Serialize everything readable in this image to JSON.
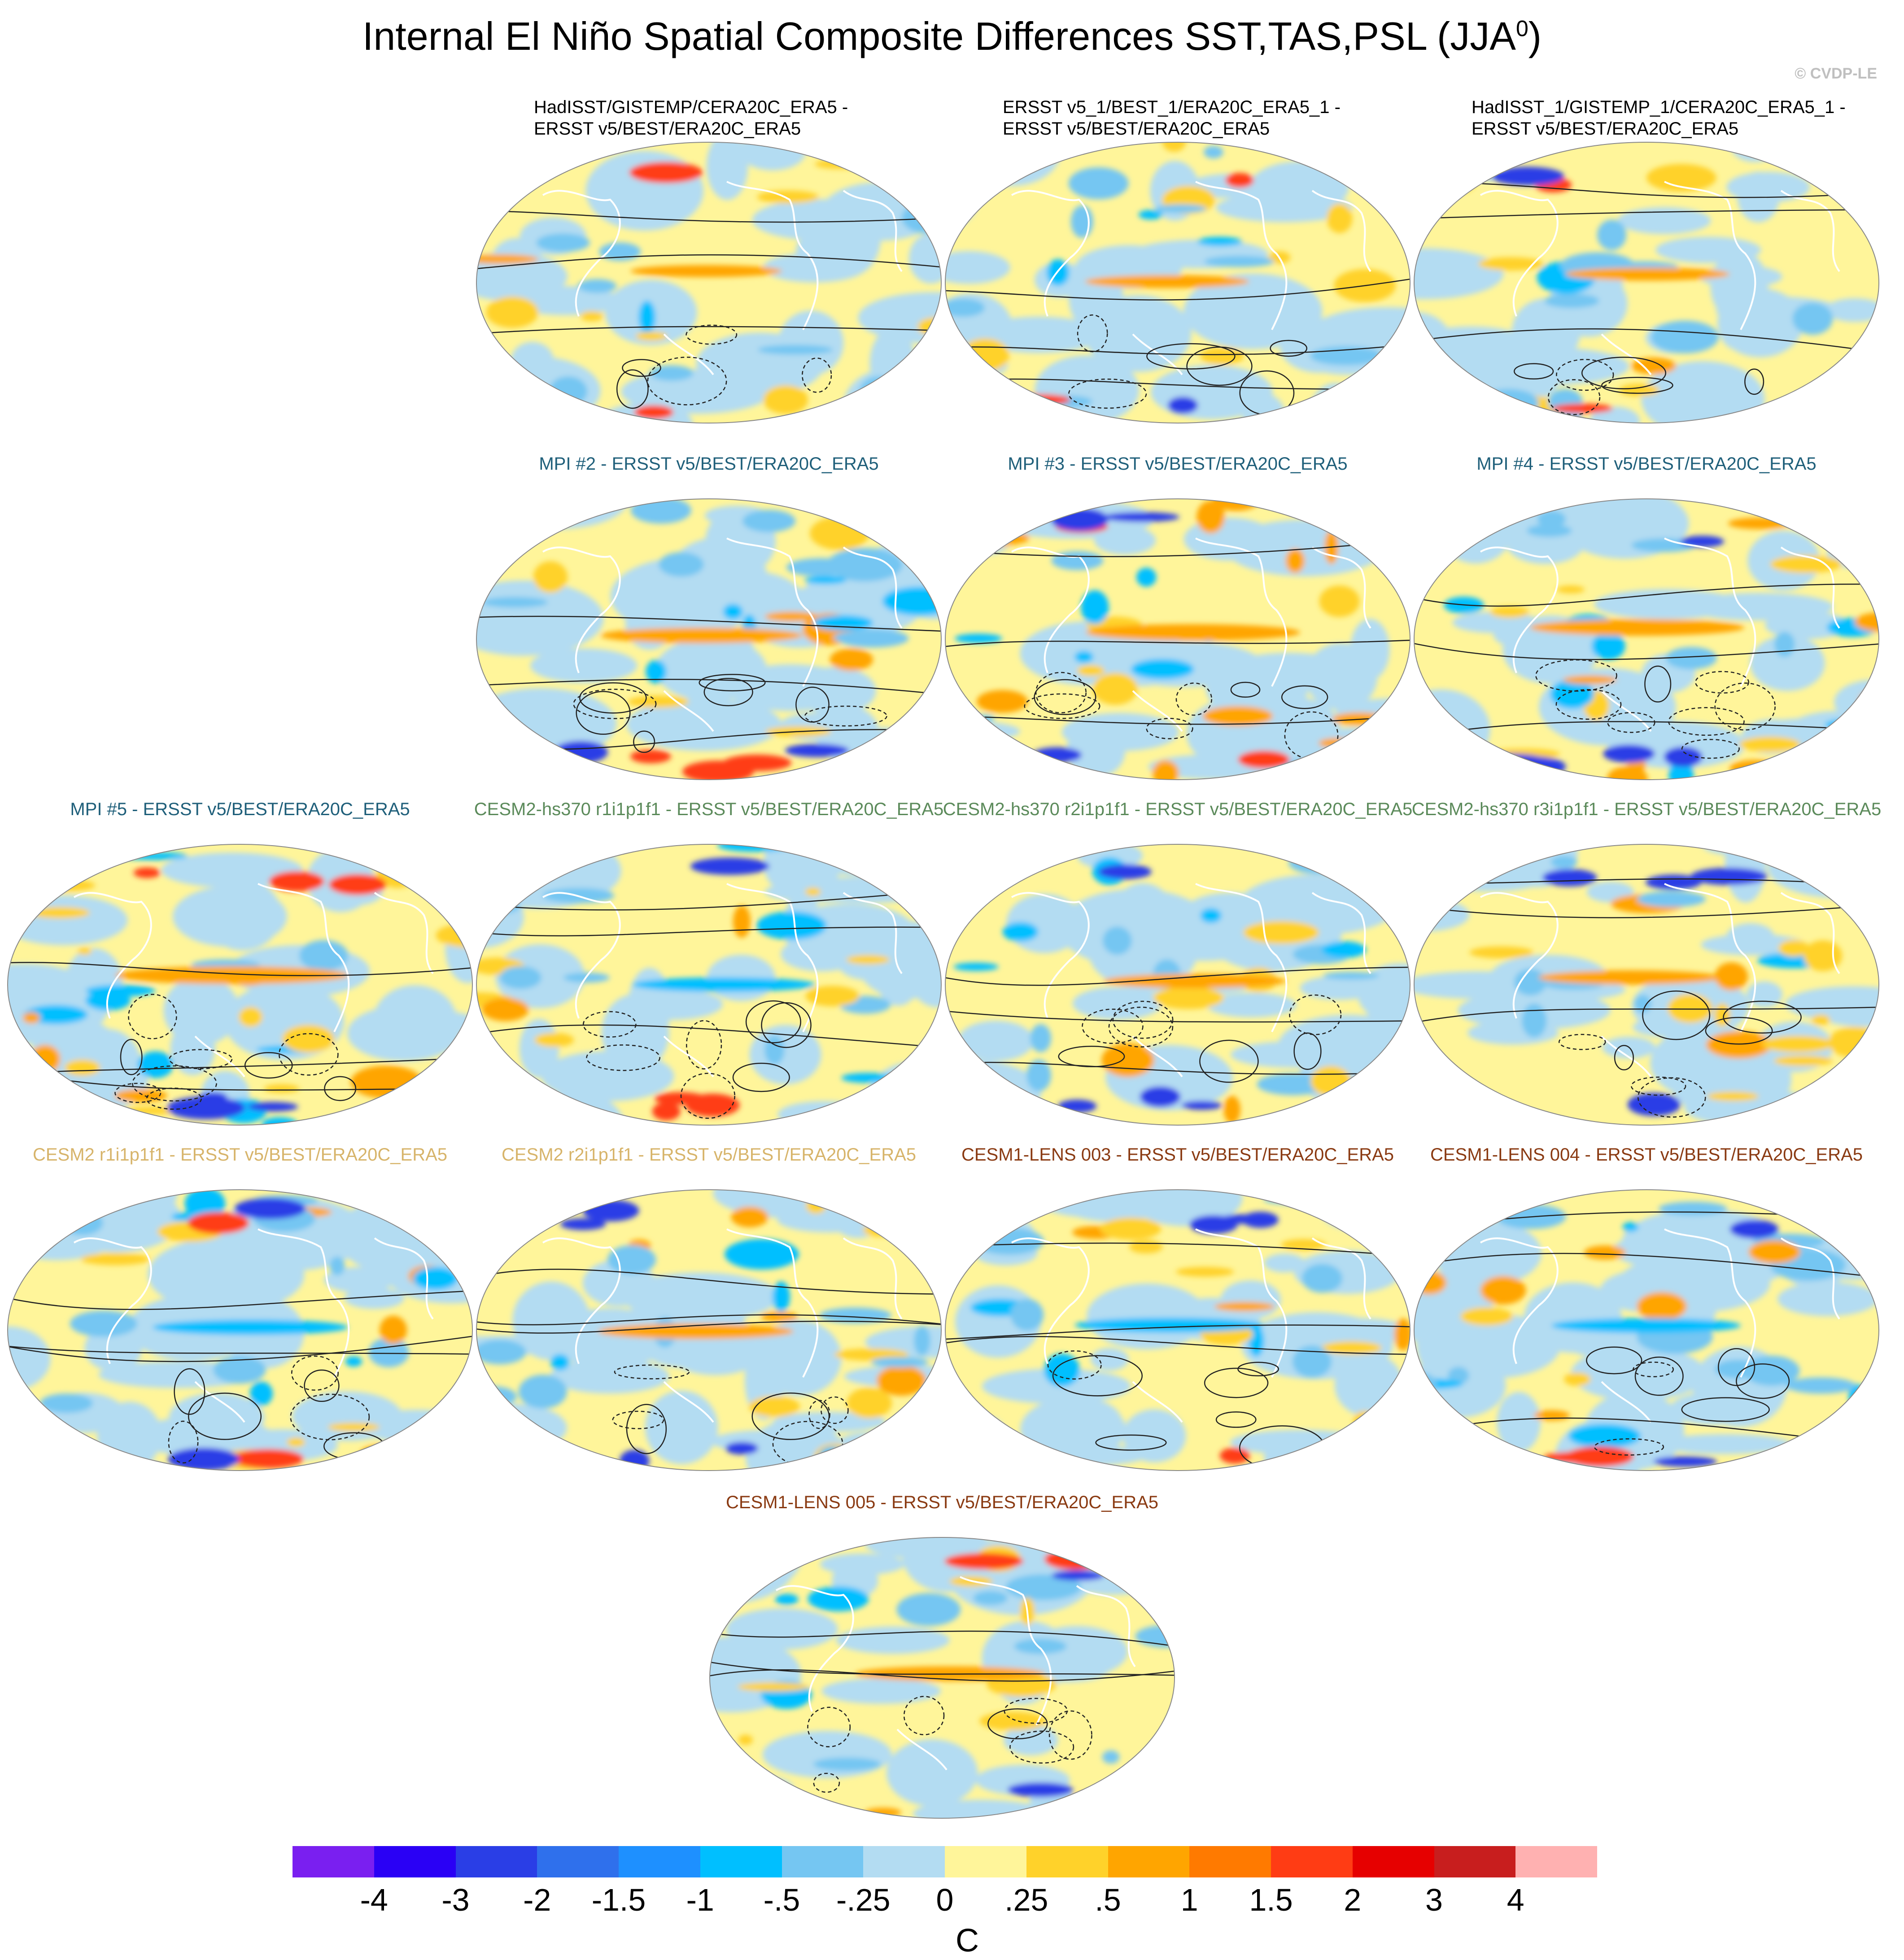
{
  "figure": {
    "title": "Internal El Niño Spatial Composite Differences SST,TAS,PSL (JJA",
    "title_sup": "0",
    "title_close": ")",
    "credit": "© CVDP-LE"
  },
  "panels": [
    {
      "line1": "HadISST/GISTEMP/CERA20C_ERA5 -",
      "line2": "ERSST v5/BEST/ERA20C_ERA5",
      "color": "#000000",
      "seed": 1,
      "intensity": 0.35
    },
    {
      "line1": "ERSST v5_1/BEST_1/ERA20C_ERA5_1 -",
      "line2": "ERSST v5/BEST/ERA20C_ERA5",
      "color": "#000000",
      "seed": 2,
      "intensity": 0.45
    },
    {
      "line1": "HadISST_1/GISTEMP_1/CERA20C_ERA5_1 -",
      "line2": "ERSST v5/BEST/ERA20C_ERA5",
      "color": "#000000",
      "seed": 3,
      "intensity": 0.45
    },
    {
      "line1": "MPI #2 - ERSST v5/BEST/ERA20C_ERA5",
      "color": "#1f5f7a",
      "seed": 4,
      "intensity": 0.75
    },
    {
      "line1": "MPI #3 - ERSST v5/BEST/ERA20C_ERA5",
      "color": "#1f5f7a",
      "seed": 5,
      "intensity": 0.85
    },
    {
      "line1": "MPI #4 - ERSST v5/BEST/ERA20C_ERA5",
      "color": "#1f5f7a",
      "seed": 6,
      "intensity": 0.85
    },
    {
      "line1": "MPI #5 - ERSST v5/BEST/ERA20C_ERA5",
      "color": "#1f5f7a",
      "seed": 7,
      "intensity": 1.0
    },
    {
      "line1": "CESM2-hs370 r1i1p1f1 - ERSST v5/BEST/ERA20C_ERA5",
      "color": "#5b8a5a",
      "seed": 8,
      "intensity": 0.6
    },
    {
      "line1": "CESM2-hs370 r2i1p1f1 - ERSST v5/BEST/ERA20C_ERA5",
      "color": "#5b8a5a",
      "seed": 9,
      "intensity": 0.6
    },
    {
      "line1": "CESM2-hs370 r3i1p1f1 - ERSST v5/BEST/ERA20C_ERA5",
      "color": "#5b8a5a",
      "seed": 10,
      "intensity": 0.6
    },
    {
      "line1": "CESM2 r1i1p1f1 - ERSST v5/BEST/ERA20C_ERA5",
      "color": "#d7b46a",
      "seed": 11,
      "intensity": 0.7
    },
    {
      "line1": "CESM2 r2i1p1f1 - ERSST v5/BEST/ERA20C_ERA5",
      "color": "#d7b46a",
      "seed": 12,
      "intensity": 0.7
    },
    {
      "line1": "CESM1-LENS 003 - ERSST v5/BEST/ERA20C_ERA5",
      "color": "#8a3a12",
      "seed": 13,
      "intensity": 0.65
    },
    {
      "line1": "CESM1-LENS 004 - ERSST v5/BEST/ERA20C_ERA5",
      "color": "#8a3a12",
      "seed": 14,
      "intensity": 0.65
    },
    {
      "line1": "CESM1-LENS 005 - ERSST v5/BEST/ERA20C_ERA5",
      "color": "#8a3a12",
      "seed": 15,
      "intensity": 0.65
    }
  ],
  "colorbar": {
    "colors": [
      "#7a1ff0",
      "#2a00f5",
      "#2a3ee6",
      "#2f70ec",
      "#1e90ff",
      "#00bfff",
      "#75c6f2",
      "#b3dcf2",
      "#fff59a",
      "#ffd22a",
      "#ffa500",
      "#ff7a00",
      "#ff3c14",
      "#e60000",
      "#c81e1e",
      "#ffb1b1"
    ],
    "labels": [
      "-4",
      "-3",
      "-2",
      "-1.5",
      "-1",
      "-.5",
      "-.25",
      "0",
      ".25",
      ".5",
      "1",
      "1.5",
      "2",
      "3",
      "4"
    ],
    "units": "C"
  }
}
